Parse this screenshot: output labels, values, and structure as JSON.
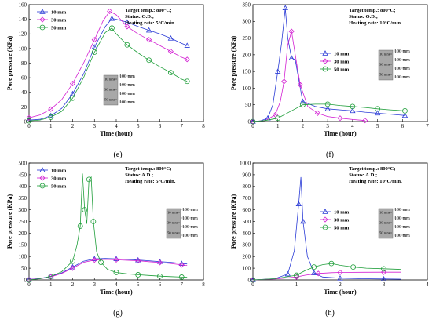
{
  "chart_data": [
    {
      "id": "e",
      "type": "line",
      "caption": "(e)",
      "xlabel": "Time (hour)",
      "ylabel": "Pore pressure (KPa)",
      "xlim": [
        0,
        8
      ],
      "ylim": [
        0,
        160
      ],
      "xticks": [
        "0",
        "1",
        "2",
        "3",
        "4",
        "5",
        "6",
        "7",
        "8"
      ],
      "yticks": [
        "0",
        "20",
        "40",
        "60",
        "80",
        "100",
        "120",
        "140",
        "160"
      ],
      "info": [
        "Target temp.: 800°C;",
        "Status: O.D.;",
        "Heating rate: 5°C/min."
      ],
      "legend": [
        "10 mm",
        "30 mm",
        "50 mm"
      ],
      "series": [
        {
          "name": "10 mm",
          "color": "#2a3bd6",
          "marker": "triangle",
          "x": [
            0,
            0.5,
            1,
            1.5,
            2,
            2.5,
            3,
            3.5,
            3.8,
            4,
            4.5,
            5,
            5.5,
            6,
            6.5,
            7,
            7.25
          ],
          "y": [
            2,
            3,
            8,
            18,
            38,
            65,
            102,
            130,
            141,
            140,
            136,
            130,
            125,
            120,
            114,
            107,
            104
          ]
        },
        {
          "name": "30 mm",
          "color": "#d321d3",
          "marker": "diamond",
          "x": [
            0,
            0.5,
            1,
            1.5,
            2,
            2.5,
            3,
            3.4,
            3.7,
            4,
            4.5,
            5,
            5.5,
            6,
            6.5,
            7,
            7.25
          ],
          "y": [
            5,
            9,
            17,
            30,
            52,
            80,
            112,
            138,
            151,
            146,
            130,
            120,
            112,
            104,
            96,
            88,
            85
          ]
        },
        {
          "name": "50 mm",
          "color": "#1f9e3a",
          "marker": "circle",
          "x": [
            0,
            0.5,
            1,
            1.5,
            2,
            2.5,
            3,
            3.5,
            3.8,
            4,
            4.5,
            5,
            5.5,
            6,
            6.5,
            7,
            7.25
          ],
          "y": [
            1,
            2,
            6,
            14,
            32,
            60,
            95,
            122,
            128,
            120,
            105,
            94,
            84,
            75,
            67,
            58,
            55
          ]
        }
      ]
    },
    {
      "id": "f",
      "type": "line",
      "caption": "(f)",
      "xlabel": "Time (hour)",
      "ylabel": "Pore pressure (KPa)",
      "xlim": [
        0,
        7
      ],
      "ylim": [
        0,
        350
      ],
      "xticks": [
        "0",
        "1",
        "2",
        "3",
        "4",
        "5",
        "6",
        "7"
      ],
      "yticks": [
        "0",
        "50",
        "100",
        "150",
        "200",
        "250",
        "300",
        "350"
      ],
      "info": [
        "Target temp.: 800°C;",
        "Status: O.D.;",
        "Heating rate: 10°C/min."
      ],
      "legend": [
        "10 mm",
        "30 mm",
        "50 mm"
      ],
      "series": [
        {
          "name": "10 mm",
          "color": "#2a3bd6",
          "marker": "triangle",
          "x": [
            0,
            0.3,
            0.6,
            0.8,
            1.0,
            1.15,
            1.3,
            1.4,
            1.55,
            1.7,
            2.0,
            2.5,
            3.0,
            3.5,
            4,
            4.5,
            5,
            5.5,
            6.1
          ],
          "y": [
            0,
            2,
            10,
            50,
            150,
            235,
            340,
            250,
            190,
            185,
            60,
            45,
            38,
            35,
            32,
            28,
            25,
            22,
            18
          ]
        },
        {
          "name": "30 mm",
          "color": "#d321d3",
          "marker": "diamond",
          "x": [
            0,
            0.5,
            0.9,
            1.1,
            1.25,
            1.4,
            1.55,
            1.7,
            1.9,
            2.2,
            2.6,
            3,
            3.5,
            4,
            4.5
          ],
          "y": [
            0,
            3,
            20,
            60,
            120,
            230,
            270,
            200,
            110,
            45,
            25,
            15,
            10,
            6,
            3
          ]
        },
        {
          "name": "50 mm",
          "color": "#1f9e3a",
          "marker": "circle",
          "x": [
            0,
            0.5,
            1,
            1.5,
            2,
            2.5,
            3,
            3.5,
            4,
            4.5,
            5,
            5.5,
            6.1
          ],
          "y": [
            0,
            3,
            10,
            30,
            50,
            52,
            52,
            48,
            45,
            42,
            38,
            35,
            32
          ]
        }
      ]
    },
    {
      "id": "g",
      "type": "line",
      "caption": "(g)",
      "xlabel": "Time (hour)",
      "ylabel": "Pore pressure (KPa)",
      "xlim": [
        0,
        8
      ],
      "ylim": [
        0,
        500
      ],
      "xticks": [
        "0",
        "1",
        "2",
        "3",
        "4",
        "5",
        "6",
        "7",
        "8"
      ],
      "yticks": [
        "0",
        "50",
        "100",
        "150",
        "200",
        "250",
        "300",
        "350",
        "400",
        "450",
        "500"
      ],
      "info": [
        "Target temp.: 800°C;",
        "Status: A.D.;",
        "Heating rate: 5°C/min."
      ],
      "legend": [
        "10 mm",
        "30 mm",
        "50 mm"
      ],
      "series": [
        {
          "name": "10 mm",
          "color": "#2a3bd6",
          "marker": "triangle",
          "x": [
            0,
            0.5,
            1,
            1.5,
            2,
            2.5,
            3,
            3.5,
            4,
            4.5,
            5,
            5.5,
            6,
            6.5,
            7,
            7.25
          ],
          "y": [
            2,
            6,
            15,
            30,
            55,
            80,
            90,
            92,
            90,
            88,
            85,
            82,
            78,
            75,
            70,
            68
          ]
        },
        {
          "name": "30 mm",
          "color": "#d321d3",
          "marker": "diamond",
          "x": [
            0,
            0.5,
            1,
            1.5,
            2,
            2.5,
            3,
            3.5,
            4,
            4.5,
            5,
            5.5,
            6,
            6.5,
            7,
            7.25
          ],
          "y": [
            2,
            5,
            13,
            28,
            50,
            75,
            85,
            88,
            86,
            84,
            82,
            78,
            74,
            70,
            64,
            62
          ]
        },
        {
          "name": "50 mm",
          "color": "#1f9e3a",
          "marker": "circle",
          "x": [
            0,
            0.5,
            1,
            1.5,
            2,
            2.2,
            2.35,
            2.45,
            2.55,
            2.65,
            2.75,
            2.85,
            2.95,
            3.1,
            3.3,
            3.6,
            4,
            4.5,
            5,
            5.5,
            6,
            6.5,
            7,
            7.25
          ],
          "y": [
            0,
            5,
            15,
            35,
            80,
            150,
            230,
            455,
            300,
            240,
            430,
            440,
            250,
            120,
            75,
            45,
            32,
            26,
            22,
            19,
            16,
            14,
            12,
            11
          ]
        }
      ]
    },
    {
      "id": "h",
      "type": "line",
      "caption": "(h)",
      "xlabel": "Time (hour)",
      "ylabel": "Pore pressure (KPa)",
      "xlim": [
        0,
        4
      ],
      "ylim": [
        0,
        1000
      ],
      "xticks": [
        "0",
        "1",
        "2",
        "3",
        "4"
      ],
      "yticks": [
        "0",
        "100",
        "200",
        "300",
        "400",
        "500",
        "600",
        "700",
        "800",
        "900",
        "1000"
      ],
      "info": [
        "Target temp.: 800°C;",
        "Status: A.D.;",
        "Heating rate: 10°C/min."
      ],
      "legend": [
        "10 mm",
        "30 mm",
        "50 mm"
      ],
      "series": [
        {
          "name": "10 mm",
          "color": "#2a3bd6",
          "marker": "triangle",
          "x": [
            0,
            0.5,
            0.8,
            0.95,
            1.05,
            1.1,
            1.15,
            1.25,
            1.4,
            1.6,
            2,
            2.5,
            3,
            3.4
          ],
          "y": [
            0,
            10,
            50,
            250,
            650,
            880,
            500,
            200,
            60,
            25,
            15,
            10,
            8,
            6
          ]
        },
        {
          "name": "30 mm",
          "color": "#d321d3",
          "marker": "diamond",
          "x": [
            0,
            0.5,
            1,
            1.2,
            1.5,
            1.8,
            2,
            2.5,
            3,
            3.4
          ],
          "y": [
            0,
            8,
            25,
            40,
            55,
            62,
            64,
            65,
            66,
            66
          ]
        },
        {
          "name": "50 mm",
          "color": "#1f9e3a",
          "marker": "circle",
          "x": [
            0,
            0.5,
            1,
            1.2,
            1.4,
            1.6,
            1.8,
            2,
            2.3,
            2.6,
            3,
            3.4
          ],
          "y": [
            0,
            10,
            40,
            80,
            110,
            130,
            140,
            125,
            110,
            100,
            95,
            90
          ]
        }
      ]
    }
  ],
  "inset": {
    "sizes": [
      "10 mm",
      "30 mm",
      "50 mm"
    ],
    "dims": [
      "100 mm",
      "100 mm",
      "100 mm",
      "100 mm"
    ]
  }
}
